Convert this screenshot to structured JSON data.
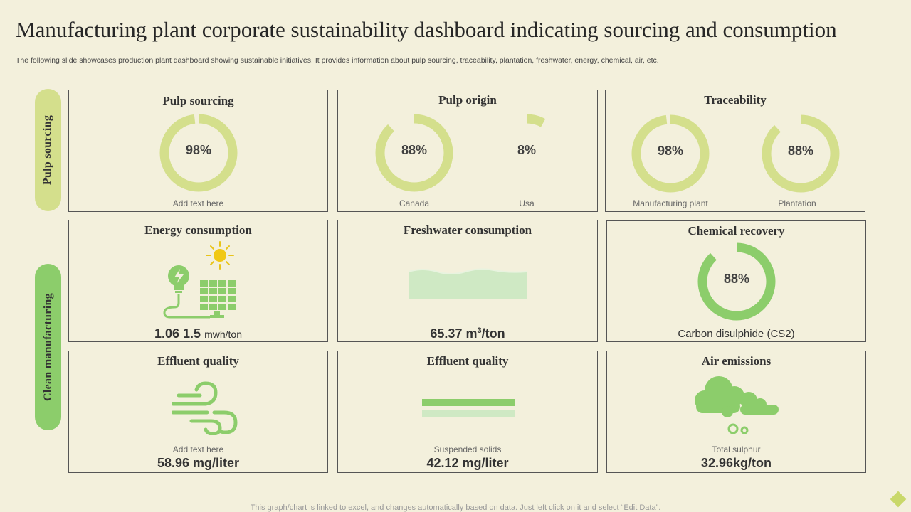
{
  "title": "Manufacturing plant corporate sustainability dashboard indicating sourcing and consumption",
  "subtitle": "The following slide showcases production plant dashboard showing sustainable initiatives. It provides information about pulp sourcing, traceability, plantation, freshwater, energy, chemical, air, etc.",
  "side": {
    "top": "Pulp sourcing",
    "bottom": "Clean manufacturing"
  },
  "colors": {
    "accent_light": "#d4df8c",
    "accent_green": "#8ccd6b",
    "track": "#f3f0dc",
    "background": "#f3f0dc"
  },
  "cards": {
    "pulp_sourcing": {
      "title": "Pulp sourcing",
      "value": "98%",
      "percent": 98,
      "label": "Add text here"
    },
    "pulp_origin": {
      "title": "Pulp origin",
      "items": [
        {
          "value": "88%",
          "percent": 88,
          "label": "Canada"
        },
        {
          "value": "8%",
          "percent": 8,
          "label": "Usa"
        }
      ]
    },
    "traceability": {
      "title": "Traceability",
      "items": [
        {
          "value": "98%",
          "percent": 98,
          "label": "Manufacturing  plant"
        },
        {
          "value": "88%",
          "percent": 88,
          "label": "Plantation"
        }
      ]
    },
    "energy": {
      "title": "Energy consumption",
      "value": "1.06 1.5",
      "unit": "mwh/ton",
      "icon": "solar-energy-icon"
    },
    "freshwater": {
      "title": "Freshwater consumption",
      "value": "65.37 m",
      "sup": "3",
      "unit": "/ton",
      "icon": "water-wave-icon"
    },
    "chemical": {
      "title": "Chemical recovery",
      "value": "88%",
      "percent": 88,
      "label": "Carbon disulphide (CS2)"
    },
    "effluent1": {
      "title": "Effluent quality",
      "label": "Add text here",
      "value": "58.96 mg/liter",
      "icon": "wind-icon"
    },
    "effluent2": {
      "title": "Effluent quality",
      "label": "Suspended solids",
      "value": "42.12 mg/liter",
      "icon": "solids-bars-icon"
    },
    "air": {
      "title": "Air emissions",
      "label": "Total sulphur",
      "value": "32.96kg/ton",
      "icon": "cloud-emission-icon"
    }
  },
  "footer": "This graph/chart is linked to excel, and changes automatically based on data. Just left click on it and select “Edit Data”."
}
